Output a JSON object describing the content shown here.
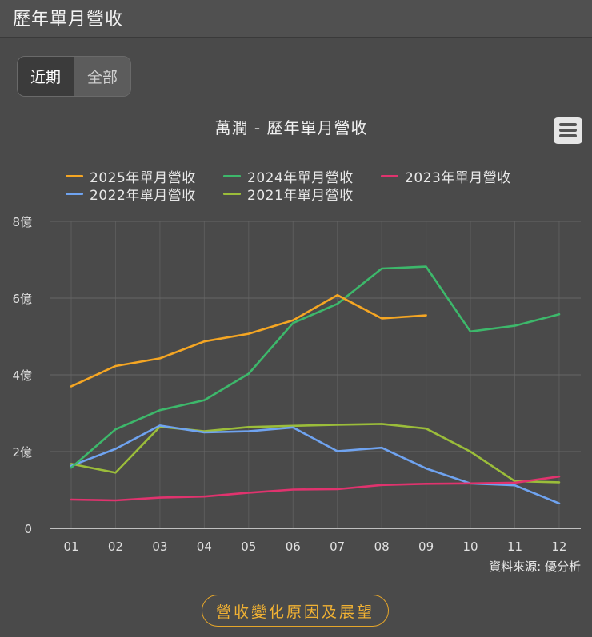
{
  "header": {
    "title": "歷年單月營收"
  },
  "toggle": {
    "recent": "近期",
    "all": "全部"
  },
  "menu_icon": "hamburger-menu-icon",
  "source": "資料來源: 優分析",
  "footer_button": "營收變化原因及展望",
  "colors": {
    "2025": "#f5a623",
    "2024": "#3db86b",
    "2023": "#e0336e",
    "2022": "#6fa3f0",
    "2021": "#9bbd3a",
    "accent": "#f2b233"
  },
  "chart_data": {
    "type": "line",
    "title": "萬潤 - 歷年單月營收",
    "categories": [
      "01",
      "02",
      "03",
      "04",
      "05",
      "06",
      "07",
      "08",
      "09",
      "10",
      "11",
      "12"
    ],
    "y_ticks": [
      "0",
      "2億",
      "4億",
      "6億",
      "8億"
    ],
    "ylim": [
      0,
      8
    ],
    "y_unit": "億",
    "grid": true,
    "legend_position": "top",
    "series": [
      {
        "name": "2025年單月營收",
        "color": "#f5a623",
        "values": [
          3.7,
          4.23,
          4.43,
          4.87,
          5.07,
          5.42,
          6.08,
          5.47,
          5.55,
          null,
          null,
          null
        ]
      },
      {
        "name": "2024年單月營收",
        "color": "#3db86b",
        "values": [
          1.58,
          2.58,
          3.08,
          3.34,
          4.03,
          5.35,
          5.85,
          6.77,
          6.82,
          5.13,
          5.28,
          5.58
        ]
      },
      {
        "name": "2023年單月營收",
        "color": "#e0336e",
        "values": [
          0.75,
          0.73,
          0.8,
          0.83,
          0.93,
          1.01,
          1.02,
          1.13,
          1.16,
          1.17,
          1.19,
          1.35
        ]
      },
      {
        "name": "2022年單月營收",
        "color": "#6fa3f0",
        "values": [
          1.63,
          2.07,
          2.68,
          2.5,
          2.53,
          2.63,
          2.01,
          2.1,
          1.56,
          1.17,
          1.12,
          0.65
        ]
      },
      {
        "name": "2021年單月營收",
        "color": "#9bbd3a",
        "values": [
          1.68,
          1.45,
          2.65,
          2.53,
          2.64,
          2.67,
          2.7,
          2.72,
          2.6,
          2.0,
          1.23,
          1.2
        ]
      }
    ]
  }
}
